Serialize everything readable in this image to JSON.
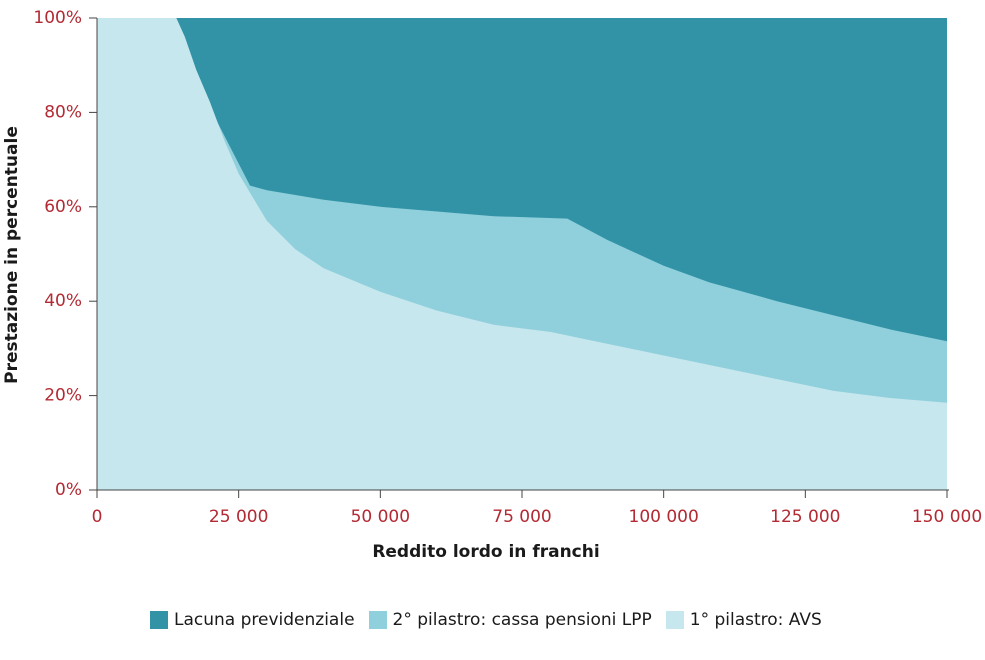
{
  "chart_data": {
    "type": "area",
    "stacked": true,
    "xlabel": "Reddito lordo in franchi",
    "ylabel": "Prestazione in percentuale",
    "xlim": [
      0,
      150000
    ],
    "ylim": [
      0,
      100
    ],
    "x_ticks": [
      0,
      25000,
      50000,
      75000,
      100000,
      125000,
      150000
    ],
    "x_tick_labels": [
      "0",
      "25 000",
      "50 000",
      "75 000",
      "100 000",
      "125 000",
      "150 000"
    ],
    "y_ticks": [
      0,
      20,
      40,
      60,
      80,
      100
    ],
    "y_tick_labels": [
      "0%",
      "20%",
      "40%",
      "60%",
      "80%",
      "100%"
    ],
    "grid": false,
    "legend_position": "bottom",
    "series": [
      {
        "name": "1° pilastro: AVS",
        "color": "#c6e7ed",
        "points": [
          [
            0,
            100
          ],
          [
            12500,
            100
          ],
          [
            14000,
            100
          ],
          [
            15500,
            96
          ],
          [
            17500,
            89
          ],
          [
            20000,
            82
          ],
          [
            22500,
            74
          ],
          [
            25000,
            67
          ],
          [
            27500,
            62
          ],
          [
            30000,
            57
          ],
          [
            35000,
            51
          ],
          [
            40000,
            47
          ],
          [
            50000,
            42
          ],
          [
            60000,
            38
          ],
          [
            70000,
            35
          ],
          [
            80000,
            33.5
          ],
          [
            90000,
            31
          ],
          [
            100000,
            28.5
          ],
          [
            110000,
            26
          ],
          [
            120000,
            23.5
          ],
          [
            130000,
            21
          ],
          [
            140000,
            19.5
          ],
          [
            150000,
            18.5
          ]
        ]
      },
      {
        "name": "2° pilastro: cassa pensioni LPP",
        "color": "#8fd0dc",
        "points": [
          [
            0,
            100
          ],
          [
            12500,
            100
          ],
          [
            14000,
            100
          ],
          [
            15500,
            96
          ],
          [
            17500,
            89
          ],
          [
            20000,
            82
          ],
          [
            20300,
            75.5
          ],
          [
            21000,
            78.5
          ],
          [
            27000,
            64.5
          ],
          [
            30000,
            63.5
          ],
          [
            40000,
            61.5
          ],
          [
            50000,
            60
          ],
          [
            60000,
            59
          ],
          [
            70000,
            58
          ],
          [
            83000,
            57.5
          ],
          [
            90000,
            53
          ],
          [
            100000,
            47.5
          ],
          [
            108000,
            44
          ],
          [
            120000,
            40
          ],
          [
            130000,
            37
          ],
          [
            140000,
            34
          ],
          [
            150000,
            31.5
          ]
        ]
      },
      {
        "name": "Lacuna previdenziale",
        "color": "#3393a6",
        "points": [
          [
            0,
            100
          ],
          [
            150000,
            100
          ]
        ]
      }
    ]
  }
}
